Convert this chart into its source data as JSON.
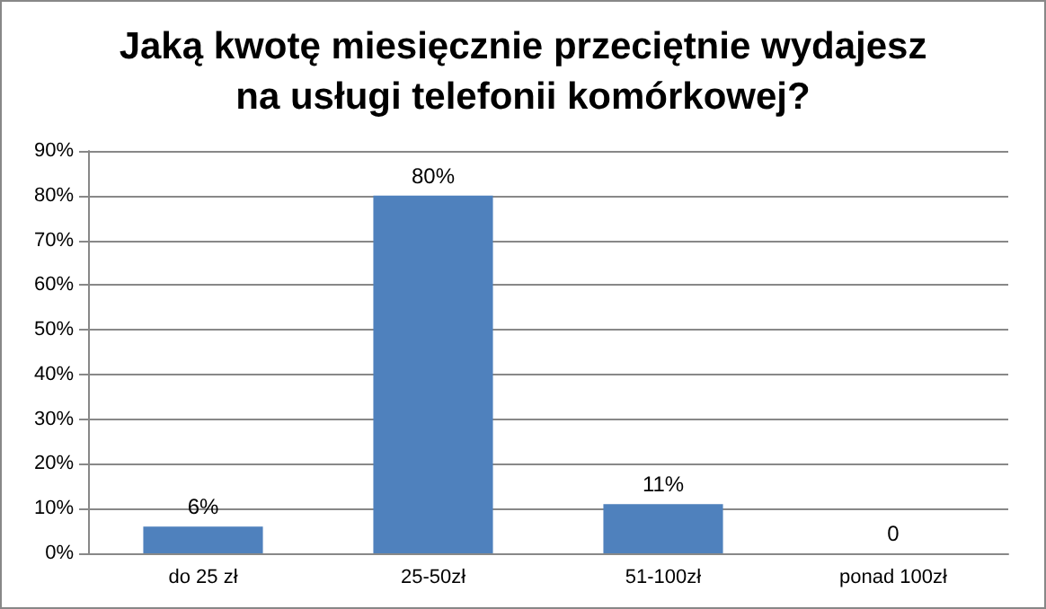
{
  "chart_data": {
    "type": "bar",
    "title": "Jaką kwotę miesięcznie przeciętnie wydajesz\nna usługi telefonii komórkowej?",
    "categories": [
      "do 25 zł",
      "25-50zł",
      "51-100zł",
      "ponad 100zł"
    ],
    "values": [
      6,
      80,
      11,
      0
    ],
    "value_labels": [
      "6%",
      "80%",
      "11%",
      "0"
    ],
    "color": "#4f81bd",
    "ylim": [
      0,
      90
    ],
    "yticks": [
      {
        "value": 0,
        "label": "0%"
      },
      {
        "value": 10,
        "label": "10%"
      },
      {
        "value": 20,
        "label": "20%"
      },
      {
        "value": 30,
        "label": "30%"
      },
      {
        "value": 40,
        "label": "40%"
      },
      {
        "value": 50,
        "label": "50%"
      },
      {
        "value": 60,
        "label": "60%"
      },
      {
        "value": 70,
        "label": "70%"
      },
      {
        "value": 80,
        "label": "80%"
      },
      {
        "value": 90,
        "label": "90%"
      }
    ],
    "grid": "y"
  }
}
